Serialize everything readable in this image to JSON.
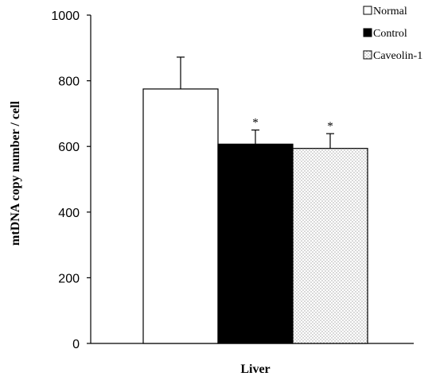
{
  "chart_data": {
    "type": "bar",
    "xlabel": "Liver",
    "ylabel": "mtDNA copy number / cell",
    "ylim": [
      0,
      1000
    ],
    "yticks": [
      0,
      200,
      400,
      600,
      800,
      1000
    ],
    "categories": [
      "Liver"
    ],
    "grid": false,
    "legend_position": "top-right",
    "series": [
      {
        "name": "Normal",
        "values": [
          775
        ],
        "error": [
          97
        ],
        "annotation": "",
        "fill": "#ffffff",
        "pattern": "none"
      },
      {
        "name": "Control",
        "values": [
          607
        ],
        "error": [
          43
        ],
        "annotation": "*",
        "fill": "#000000",
        "pattern": "none"
      },
      {
        "name": "Caveolin-1",
        "values": [
          594
        ],
        "error": [
          45
        ],
        "annotation": "*",
        "fill": "#ffffff",
        "pattern": "dots"
      }
    ]
  }
}
